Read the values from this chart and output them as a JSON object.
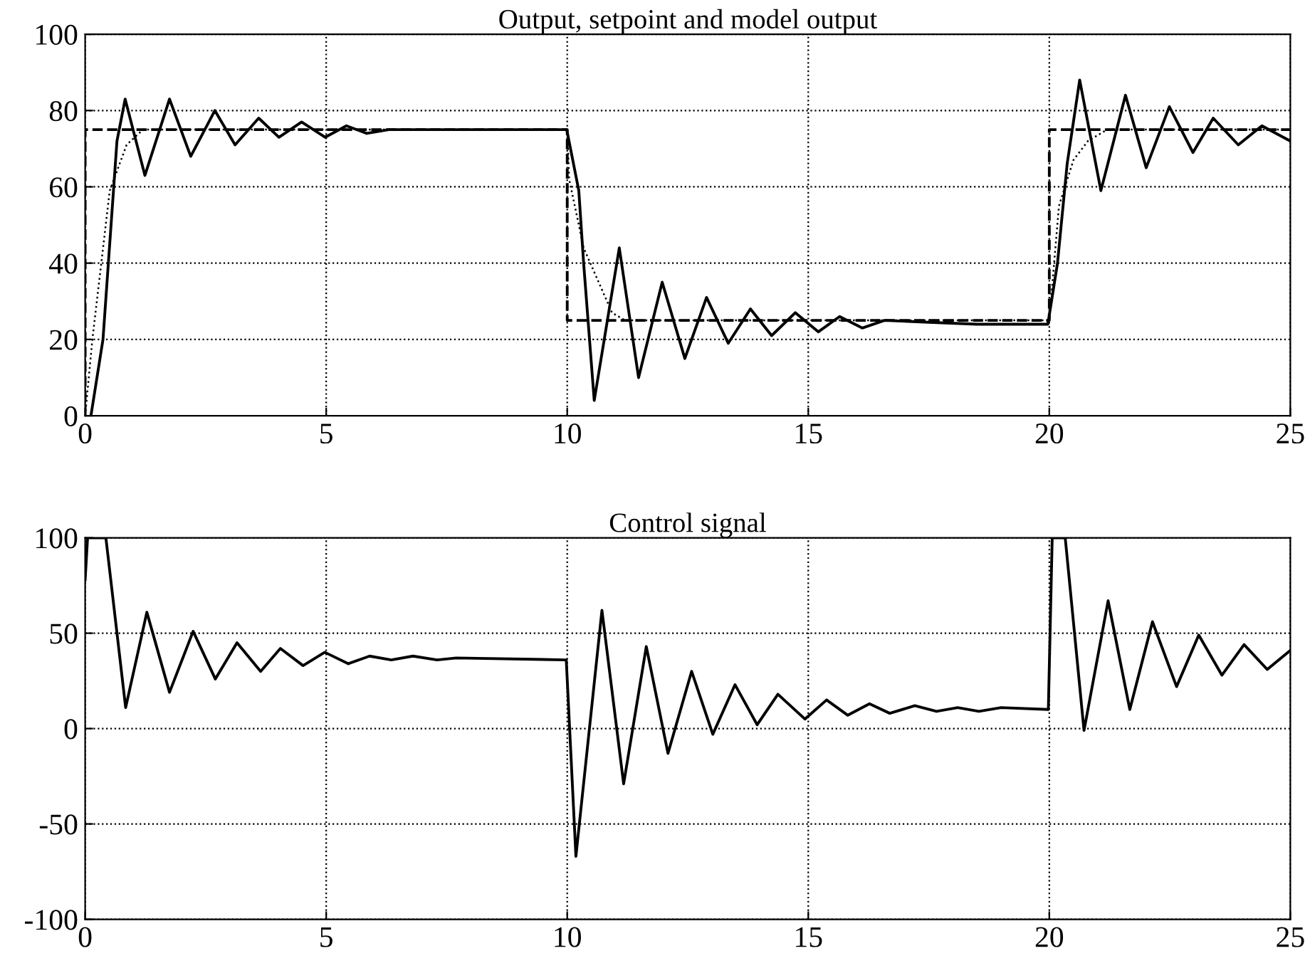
{
  "chart_data": [
    {
      "type": "line",
      "title": "Output, setpoint and model output",
      "xlim": [
        0,
        25
      ],
      "ylim": [
        0,
        100
      ],
      "xticks": [
        0,
        5,
        10,
        15,
        20,
        25
      ],
      "yticks": [
        0,
        20,
        40,
        60,
        80,
        100
      ],
      "grid": true,
      "marker": "none",
      "series": [
        {
          "color": "#000000",
          "line_style": "solid",
          "x": [
            0.12,
            0.37,
            0.66,
            0.83,
            1.24,
            1.75,
            2.19,
            2.69,
            3.11,
            3.6,
            4.02,
            4.49,
            4.98,
            5.42,
            5.84,
            6.3,
            7,
            8,
            9,
            9.99,
            10.24,
            10.34,
            10.56,
            11.08,
            11.48,
            11.97,
            12.44,
            12.89,
            13.34,
            13.8,
            14.24,
            14.73,
            15.21,
            15.65,
            16.12,
            16.58,
            17.5,
            18.5,
            19.97,
            20.17,
            20.37,
            20.63,
            21.07,
            21.58,
            22.01,
            22.49,
            22.98,
            23.4,
            23.92,
            24.41,
            25
          ],
          "values": [
            0,
            20,
            72,
            83,
            63,
            83,
            68,
            80,
            71,
            78,
            73,
            77,
            73,
            76,
            74,
            75,
            75,
            75,
            75,
            75,
            59,
            40,
            4,
            44,
            10,
            35,
            15,
            31,
            19,
            28,
            21,
            27,
            22,
            26,
            23,
            25,
            24.5,
            24,
            24,
            40,
            66,
            88,
            59,
            84,
            65,
            81,
            69,
            78,
            71,
            76,
            72
          ]
        },
        {
          "color": "#000000",
          "line_style": "dashed",
          "x": [
            0,
            0,
            10,
            10,
            20,
            20,
            25
          ],
          "values": [
            0,
            75,
            75,
            25,
            25,
            75,
            75
          ]
        },
        {
          "color": "#000000",
          "line_style": "dotted",
          "x": [
            0,
            0.15,
            0.51,
            0.86,
            1.2,
            10,
            10.04,
            10.34,
            10.93,
            11.2,
            20,
            20.2,
            20.5,
            20.8,
            21.2,
            25
          ],
          "values": [
            0,
            20,
            59,
            71,
            75,
            75,
            62,
            44,
            27,
            25,
            25,
            55,
            67,
            72,
            75,
            75
          ]
        }
      ]
    },
    {
      "type": "line",
      "title": "Control signal",
      "xlim": [
        0,
        25
      ],
      "ylim": [
        -100,
        100
      ],
      "xticks": [
        0,
        5,
        10,
        15,
        20,
        25
      ],
      "yticks": [
        -100,
        -50,
        0,
        50,
        100
      ],
      "grid": true,
      "marker": "none",
      "series": [
        {
          "color": "#000000",
          "line_style": "solid",
          "x": [
            0,
            0.05,
            0.43,
            0.84,
            1.28,
            1.75,
            2.24,
            2.7,
            3.15,
            3.64,
            4.05,
            4.52,
            4.97,
            5.46,
            5.9,
            6.35,
            6.8,
            7.3,
            7.7,
            9.98,
            10.18,
            10.72,
            11.17,
            11.64,
            12.09,
            12.58,
            13.02,
            13.48,
            13.94,
            14.37,
            14.93,
            15.38,
            15.82,
            16.27,
            16.69,
            17.21,
            17.66,
            18.1,
            18.54,
            19.0,
            19.98,
            20.06,
            20.33,
            20.72,
            21.22,
            21.67,
            22.14,
            22.64,
            23.1,
            23.58,
            24.04,
            24.52,
            25
          ],
          "values": [
            78,
            100,
            100,
            11,
            61,
            19,
            51,
            26,
            45,
            30,
            42,
            33,
            40,
            34,
            38,
            36,
            38,
            36,
            37,
            36,
            -67,
            62,
            -29,
            43,
            -13,
            30,
            -3,
            23,
            2,
            18,
            5,
            15,
            7,
            13,
            8,
            12,
            9,
            11,
            9,
            11,
            10,
            100,
            100,
            -1,
            67,
            10,
            56,
            22,
            49,
            28,
            44,
            31,
            41
          ]
        }
      ]
    }
  ]
}
